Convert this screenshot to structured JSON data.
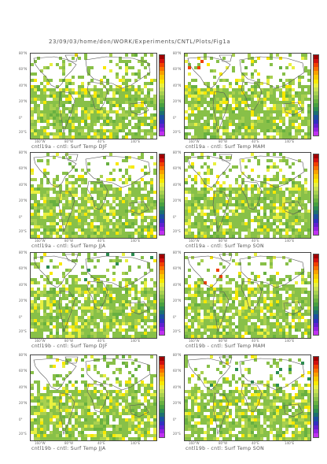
{
  "header": {
    "path": "23/09/03/home/don/WORK/Experiments/CNTL/Plots/Fig1a"
  },
  "axes": {
    "lat_labels": [
      "80°N",
      "60°N",
      "40°N",
      "20°N",
      "0°",
      "20°S"
    ],
    "lon_labels": [
      "160°W",
      "80°W",
      "40°E",
      "140°E"
    ]
  },
  "colors": {
    "colorbar": [
      "#a00000",
      "#d01010",
      "#f04000",
      "#f87000",
      "#f8a000",
      "#f8c800",
      "#f8e800",
      "#e8f040",
      "#c8e050",
      "#a8d050",
      "#88c048",
      "#68b040",
      "#48a040",
      "#2c8c50",
      "#1c7070",
      "#1a50a0",
      "#3030c0",
      "#6020d0",
      "#9020e0",
      "#c030f0"
    ]
  },
  "panels": [
    {
      "title": "cntl19a - cntl: Surf Temp DJF",
      "variant": 0
    },
    {
      "title": "cntl19a - cntl: Surf Temp MAM",
      "variant": 1
    },
    {
      "title": "cntl19a - cntl: Surf Temp JJA",
      "variant": 2
    },
    {
      "title": "cntl19a - cntl: Surf Temp SON",
      "variant": 3
    },
    {
      "title": "cntl19b - cntl: Surf Temp DJF",
      "variant": 4
    },
    {
      "title": "cntl19b - cntl: Surf Temp MAM",
      "variant": 5
    },
    {
      "title": "cntl19b - cntl: Surf Temp JJA",
      "variant": 6
    },
    {
      "title": "cntl19b - cntl: Surf Temp SON",
      "variant": 7
    }
  ]
}
